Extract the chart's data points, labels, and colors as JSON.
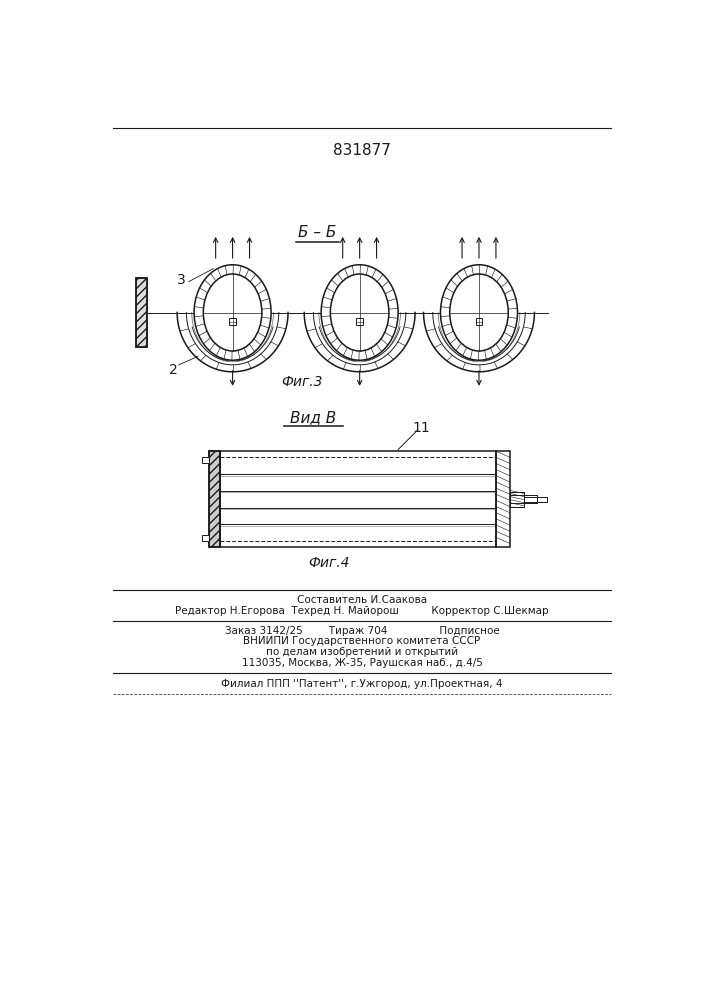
{
  "patent_number": "831877",
  "fig3_label": "Б – Б",
  "fig3_caption": "Фиг.3",
  "fig4_label": "Вид В",
  "fig4_caption": "Фиг.4",
  "label_2": "2",
  "label_3": "3",
  "label_11": "11",
  "footer_line1": "Составитель И.Саакова",
  "footer_line2": "Редактор Н.Егорова  Техред Н. Майорош          Корректор С.Шекмар",
  "footer_line3": "Заказ 3142/25        Тираж 704                Подписное",
  "footer_line4": "ВНИИПИ Государственного комитета СССР",
  "footer_line5": "по делам изобретений и открытий",
  "footer_line6": "113035, Москва, Ж-35, Раушская наб., д.4/5",
  "footer_line7": "Филиал ППП ''Патент'', г.Ужгород, ул.Проектная, 4",
  "bg_color": "#ffffff",
  "line_color": "#1a1a1a"
}
